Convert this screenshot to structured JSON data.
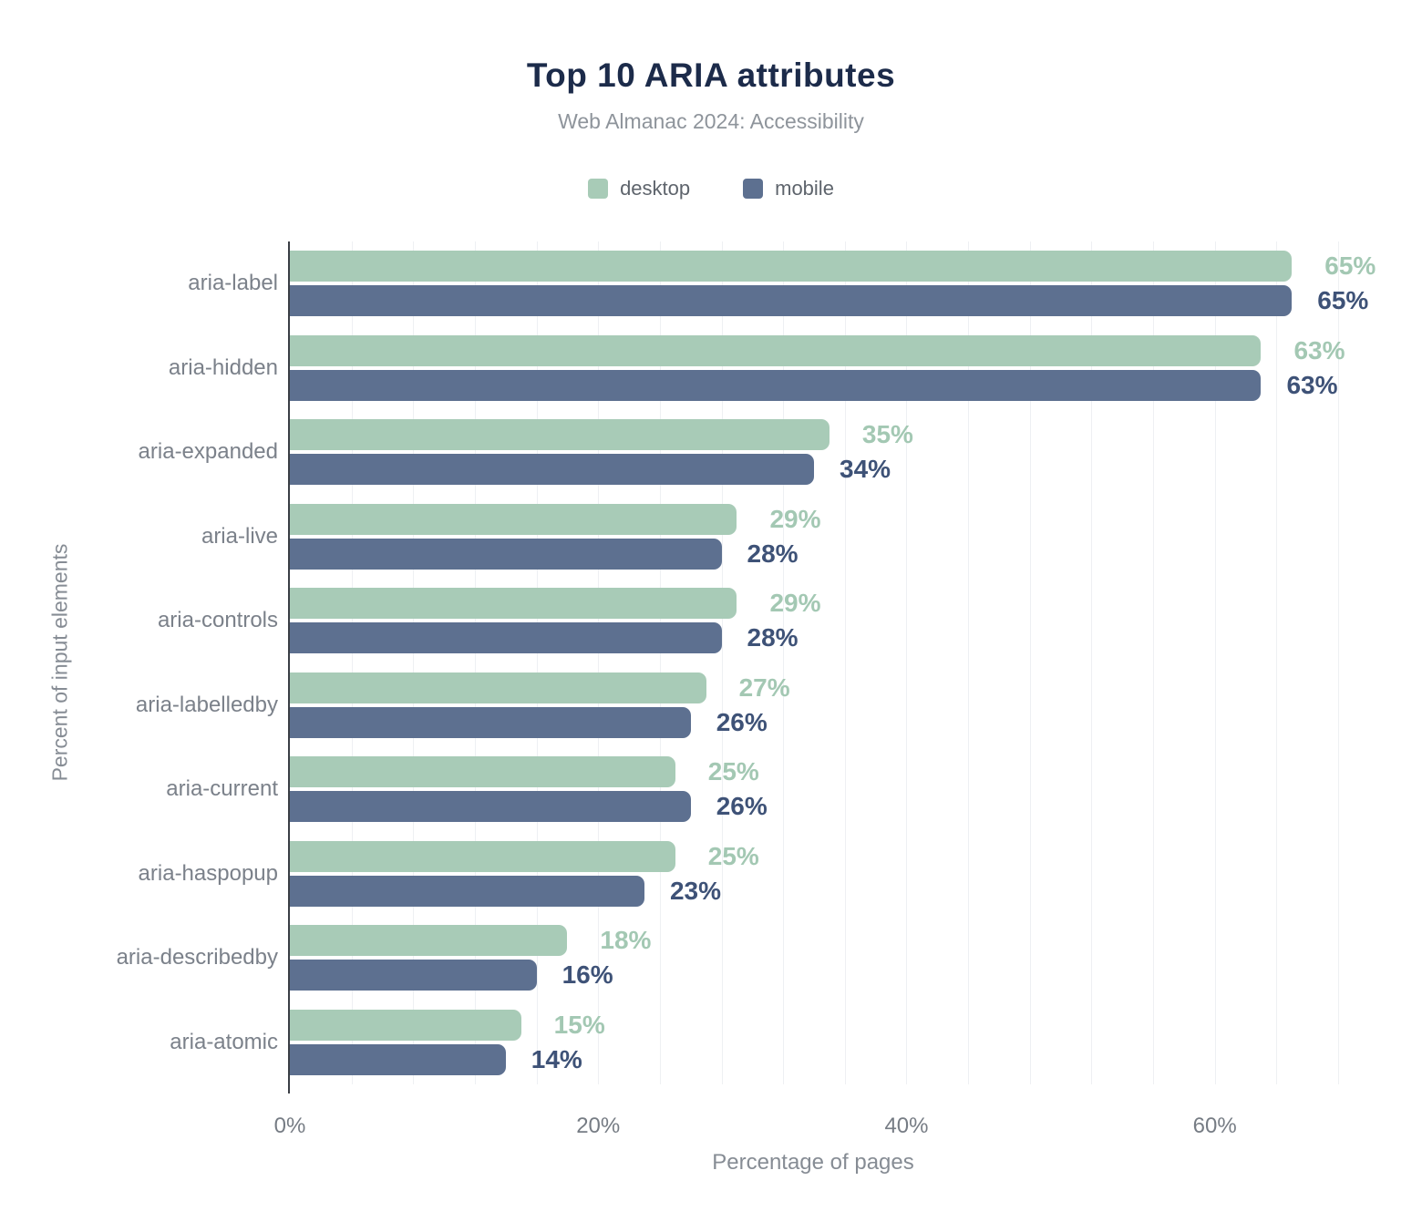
{
  "title": "Top 10 ARIA attributes",
  "subtitle": "Web Almanac 2024: Accessibility",
  "legend": {
    "items": [
      {
        "label": "desktop",
        "color": "#a8cbb7"
      },
      {
        "label": "mobile",
        "color": "#5d7090"
      }
    ]
  },
  "chart_data": {
    "type": "bar",
    "orientation": "horizontal",
    "title": "Top 10 ARIA attributes",
    "subtitle": "Web Almanac 2024: Accessibility",
    "categories": [
      "aria-label",
      "aria-hidden",
      "aria-expanded",
      "aria-live",
      "aria-controls",
      "aria-labelledby",
      "aria-current",
      "aria-haspopup",
      "aria-describedby",
      "aria-atomic"
    ],
    "series": [
      {
        "name": "desktop",
        "color": "#a8cbb7",
        "label_color": "#a3c8b3",
        "values": [
          65,
          63,
          35,
          29,
          29,
          27,
          25,
          25,
          18,
          15
        ]
      },
      {
        "name": "mobile",
        "color": "#5d7090",
        "label_color": "#3e5277",
        "values": [
          65,
          63,
          34,
          28,
          28,
          26,
          26,
          23,
          16,
          14
        ]
      }
    ],
    "value_suffix": "%",
    "xlabel": "Percentage of pages",
    "ylabel": "Percent of input elements",
    "xlim": [
      0,
      68
    ],
    "xticks": [
      {
        "value": 0,
        "label": "0%"
      },
      {
        "value": 20,
        "label": "20%"
      },
      {
        "value": 40,
        "label": "40%"
      },
      {
        "value": 60,
        "label": "60%"
      }
    ],
    "grid": true,
    "grid_step": 4,
    "legend_position": "top"
  }
}
